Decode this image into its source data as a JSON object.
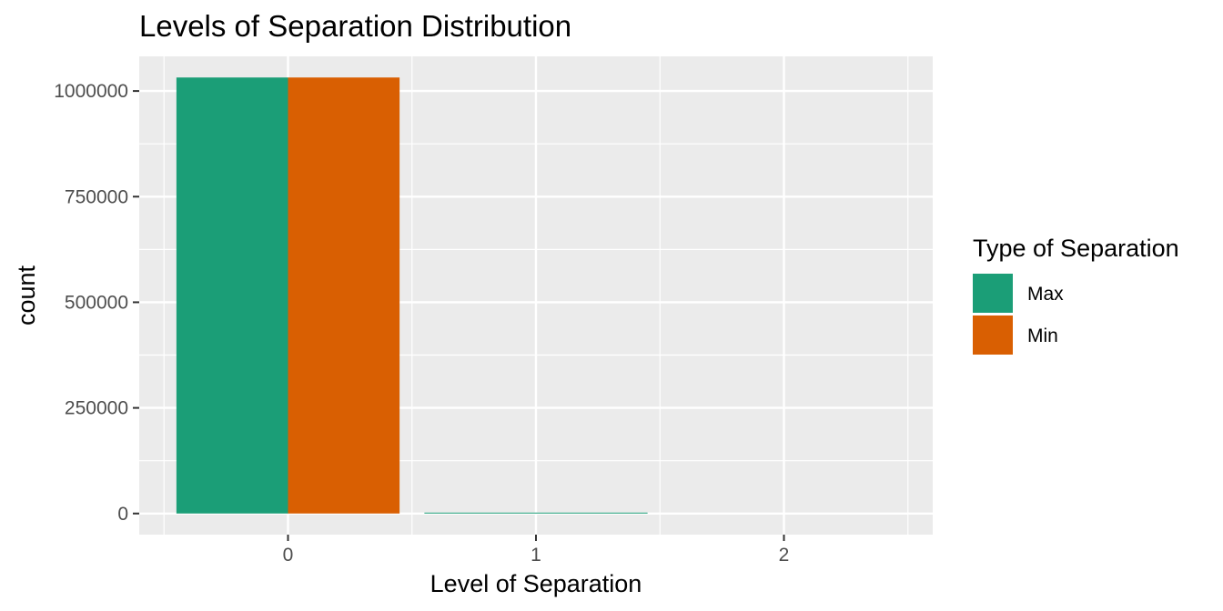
{
  "chart_data": {
    "type": "bar",
    "title": "Levels of Separation Distribution",
    "xlabel": "Level of Separation",
    "ylabel": "count",
    "categories": [
      "0",
      "1",
      "2"
    ],
    "series": [
      {
        "name": "Max",
        "values": [
          1032000,
          1500,
          0
        ],
        "color": "#1b9e77"
      },
      {
        "name": "Min",
        "values": [
          1032000,
          0,
          0
        ],
        "color": "#d95f02"
      }
    ],
    "bar_groups": [
      {
        "category": "0",
        "series": "Max",
        "value": 1032000
      },
      {
        "category": "0",
        "series": "Min",
        "value": 1032000
      },
      {
        "category": "1",
        "series": "Max",
        "value": 1500
      }
    ],
    "ylim": [
      -50000,
      1082000
    ],
    "xlim": [
      -0.6,
      2.6
    ],
    "y_ticks": [
      0,
      250000,
      500000,
      750000,
      1000000
    ],
    "y_tick_labels": [
      "0",
      "250000",
      "500000",
      "750000",
      "1000000"
    ],
    "x_ticks": [
      0,
      1,
      2
    ],
    "x_tick_labels": [
      "0",
      "1",
      "2"
    ],
    "grid": true,
    "legend": {
      "title": "Type of Separation",
      "position": "right",
      "entries": [
        "Max",
        "Min"
      ]
    },
    "panel_background": "#ebebeb",
    "grid_color": "#ffffff"
  }
}
